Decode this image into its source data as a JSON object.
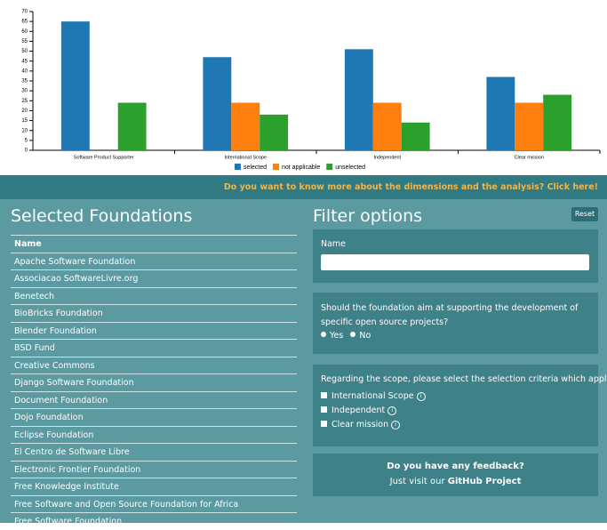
{
  "chart_data": {
    "type": "bar",
    "categories": [
      "Software Product Supporter",
      "International Scope",
      "Independent",
      "Clear mission"
    ],
    "series": [
      {
        "name": "selected",
        "color": "#1f77b4",
        "values": [
          65,
          47,
          51,
          37
        ]
      },
      {
        "name": "not applicable",
        "color": "#ff7f0e",
        "values": [
          0,
          24,
          24,
          24
        ]
      },
      {
        "name": "unselected",
        "color": "#2ca02c",
        "values": [
          24,
          18,
          14,
          28
        ]
      }
    ],
    "ylim": [
      0,
      70
    ],
    "yticks": [
      0,
      5,
      10,
      15,
      20,
      25,
      30,
      35,
      40,
      45,
      50,
      55,
      60,
      65,
      70
    ],
    "legend": "bottom"
  },
  "banner": {
    "link": "Do you want to know more about the dimensions and the analysis? Click here!"
  },
  "foundations": {
    "title": "Selected Foundations",
    "header": "Name",
    "rows": [
      "Apache Software Foundation",
      "Associacao SoftwareLivre.org",
      "Benetech",
      "BioBricks Foundation",
      "Blender Foundation",
      "BSD Fund",
      "Creative Commons",
      "Django Software Foundation",
      "Document Foundation",
      "Dojo Foundation",
      "Eclipse Foundation",
      "El Centro de Software Libre",
      "Electronic Frontier Foundation",
      "Free Knowledge Institute",
      "Free Software and Open Source Foundation for Africa",
      "Free Software Foundation"
    ]
  },
  "filters": {
    "title": "Filter options",
    "reset": "Reset",
    "name_label": "Name",
    "question": "Should the foundation aim at supporting the development of specific open source projects?",
    "options": [
      "Yes",
      "No"
    ],
    "scope_question": "Regarding the scope, please select the selection criteria which applies:",
    "criteria": [
      "International Scope",
      "Independent",
      "Clear mission"
    ]
  },
  "feedback": {
    "title": "Do you have any feedback?",
    "text": "Just visit our",
    "link": "GitHub Project"
  }
}
